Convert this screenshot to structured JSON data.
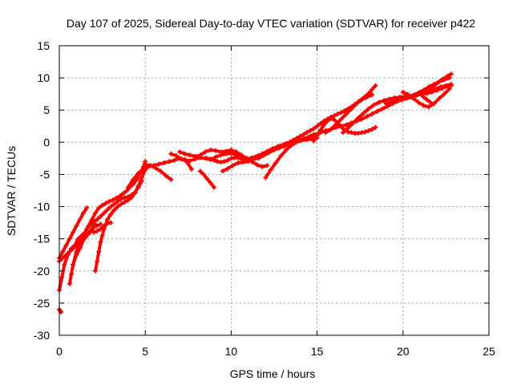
{
  "chart_data": {
    "type": "scatter",
    "title": "Day 107 of 2025, Sidereal Day-to-day VTEC variation (SDTVAR) for receiver p422",
    "xlabel": "GPS time / hours",
    "ylabel": "SDTVAR / TECUs",
    "xlim": [
      0,
      25
    ],
    "ylim": [
      -30,
      15
    ],
    "x_ticks": [
      0,
      5,
      10,
      15,
      20,
      25
    ],
    "y_ticks": [
      -30,
      -25,
      -20,
      -15,
      -10,
      -5,
      0,
      5,
      10,
      15
    ],
    "grid": true,
    "series_color": "#ff0000",
    "marker": "plus",
    "series": [
      {
        "x": [
          0.0,
          0.05,
          0.1
        ],
        "y": [
          -26.0,
          -26.2,
          -26.4
        ]
      },
      {
        "x": [
          0.0,
          0.2,
          0.4,
          0.6,
          0.8,
          1.0,
          1.2,
          1.4,
          1.6
        ],
        "y": [
          -18.0,
          -17.0,
          -16.0,
          -15.0,
          -14.0,
          -13.0,
          -12.0,
          -11.0,
          -10.2
        ]
      },
      {
        "x": [
          0.0,
          0.15,
          0.3,
          0.5,
          0.7,
          0.9,
          1.1,
          1.3,
          1.5,
          1.7,
          1.9,
          2.1,
          2.3,
          2.5,
          2.7,
          2.9,
          3.1,
          3.3,
          3.5,
          3.7,
          3.9,
          4.1,
          4.3,
          4.5,
          4.7,
          4.9,
          5.0
        ],
        "y": [
          -23.0,
          -21.0,
          -19.0,
          -17.5,
          -16.5,
          -16.0,
          -15.0,
          -14.5,
          -14.0,
          -13.0,
          -12.0,
          -11.0,
          -10.2,
          -9.8,
          -9.5,
          -9.2,
          -9.0,
          -8.7,
          -8.4,
          -8.0,
          -7.6,
          -7.0,
          -6.5,
          -5.8,
          -4.8,
          -3.8,
          -3.0
        ]
      },
      {
        "x": [
          0.0,
          0.2,
          0.4,
          0.6,
          0.8,
          1.0,
          1.2,
          1.4,
          1.6,
          1.8,
          2.0
        ],
        "y": [
          -18.5,
          -18.0,
          -17.5,
          -17.0,
          -16.5,
          -16.0,
          -15.5,
          -15.2,
          -14.5,
          -14.0,
          -13.3
        ]
      },
      {
        "x": [
          0.6,
          0.7,
          0.8,
          1.0,
          1.2,
          1.4,
          1.6,
          1.8,
          2.0,
          2.2,
          2.4,
          2.6,
          2.8,
          3.0,
          3.2,
          3.4,
          3.6,
          3.8,
          4.0,
          4.2,
          4.4,
          4.6,
          4.8
        ],
        "y": [
          -22.0,
          -20.5,
          -19.0,
          -17.0,
          -15.5,
          -14.5,
          -13.5,
          -12.8,
          -12.3,
          -12.0,
          -11.5,
          -11.0,
          -10.5,
          -10.0,
          -9.6,
          -9.2,
          -8.8,
          -8.6,
          -8.5,
          -8.2,
          -7.8,
          -7.0,
          -6.0
        ]
      },
      {
        "x": [
          0.8,
          1.0,
          1.2,
          1.4,
          1.6,
          1.8,
          2.0,
          2.1,
          2.2,
          2.4
        ],
        "y": [
          -19.0,
          -17.5,
          -16.5,
          -15.2,
          -14.5,
          -13.8,
          -13.0,
          -12.8,
          -13.0,
          -12.7
        ]
      },
      {
        "x": [
          2.1,
          2.2,
          2.3,
          2.4,
          2.5,
          2.6,
          2.7,
          2.8,
          3.0,
          3.2,
          3.4,
          3.6,
          3.8,
          4.0,
          4.2,
          4.4,
          4.6,
          4.8,
          5.0
        ],
        "y": [
          -20.0,
          -18.5,
          -17.0,
          -15.5,
          -14.5,
          -13.5,
          -12.8,
          -12.0,
          -11.2,
          -10.5,
          -10.0,
          -9.6,
          -9.3,
          -9.0,
          -8.6,
          -7.9,
          -6.8,
          -5.5,
          -4.3
        ]
      },
      {
        "x": [
          2.0,
          2.2,
          2.4,
          2.6,
          2.8,
          3.0
        ],
        "y": [
          -14.0,
          -13.8,
          -13.5,
          -13.0,
          -12.6,
          -12.5
        ]
      },
      {
        "x": [
          4.0,
          4.3,
          4.6,
          4.9,
          5.2,
          5.5,
          5.8,
          6.1,
          6.4,
          6.7,
          7.0,
          7.3,
          7.6,
          7.9,
          8.2,
          8.5,
          8.8,
          9.1,
          9.4,
          9.7,
          10.0,
          10.3,
          10.6,
          10.9,
          11.2,
          11.5,
          11.8,
          12.1,
          12.4,
          12.7,
          13.0,
          13.3,
          13.6,
          13.9,
          14.2,
          14.5,
          14.8
        ],
        "y": [
          -7.0,
          -5.8,
          -4.8,
          -4.2,
          -3.8,
          -3.6,
          -3.4,
          -3.2,
          -3.0,
          -2.8,
          -2.5,
          -2.7,
          -2.9,
          -2.6,
          -2.4,
          -2.5,
          -2.7,
          -2.3,
          -2.0,
          -1.8,
          -1.7,
          -2.0,
          -2.3,
          -2.6,
          -2.5,
          -2.2,
          -1.8,
          -1.4,
          -1.0,
          -0.7,
          -0.5,
          -0.3,
          -0.1,
          0.2,
          0.5,
          0.8,
          1.2
        ]
      },
      {
        "x": [
          5.0,
          5.3,
          5.6,
          5.9,
          6.2,
          6.5
        ],
        "y": [
          -3.5,
          -3.6,
          -4.0,
          -4.5,
          -5.2,
          -5.8
        ]
      },
      {
        "x": [
          6.5,
          6.8,
          7.1,
          7.4,
          7.7
        ],
        "y": [
          -1.8,
          -2.1,
          -2.6,
          -3.0,
          -4.2
        ]
      },
      {
        "x": [
          7.0,
          7.3,
          7.6,
          7.9,
          8.2,
          8.5,
          8.8,
          9.1,
          9.4,
          9.7,
          10.0,
          10.3,
          10.6,
          10.9,
          11.2,
          11.5,
          11.8,
          12.1
        ],
        "y": [
          -1.5,
          -1.8,
          -2.0,
          -2.2,
          -2.0,
          -1.5,
          -1.2,
          -1.3,
          -1.5,
          -1.4,
          -1.2,
          -1.5,
          -2.0,
          -2.5,
          -3.0,
          -3.5,
          -3.8,
          -3.6
        ]
      },
      {
        "x": [
          8.2,
          8.4,
          8.6,
          8.8,
          9.0
        ],
        "y": [
          -4.5,
          -5.0,
          -5.7,
          -6.3,
          -7.0
        ]
      },
      {
        "x": [
          8.6,
          8.8,
          9.0,
          9.2,
          9.4,
          9.6,
          9.8,
          10.0,
          10.2,
          10.4,
          10.6,
          10.8,
          11.0,
          11.2,
          11.4,
          11.6,
          11.8,
          12.0,
          12.2,
          12.4,
          12.6,
          12.8,
          13.0,
          13.2,
          13.4,
          13.6,
          13.8,
          14.0,
          14.2,
          14.4,
          14.6,
          14.8,
          15.0,
          15.2,
          15.4,
          15.6,
          15.8,
          16.0,
          16.2,
          16.4,
          16.6,
          16.8,
          17.0,
          17.2,
          17.4,
          17.6,
          17.8,
          18.0,
          18.2,
          18.4
        ],
        "y": [
          -2.5,
          -2.6,
          -2.8,
          -3.0,
          -3.1,
          -3.0,
          -2.8,
          -2.5,
          -2.4,
          -2.4,
          -2.6,
          -2.7,
          -2.6,
          -2.4,
          -2.3,
          -2.1,
          -2.0,
          -1.8,
          -1.5,
          -1.2,
          -0.9,
          -0.6,
          -0.4,
          -0.2,
          0.0,
          0.3,
          0.6,
          0.9,
          1.2,
          1.5,
          1.8,
          2.1,
          2.5,
          2.9,
          3.3,
          3.6,
          3.9,
          4.1,
          4.4,
          4.6,
          4.9,
          5.2,
          5.5,
          5.9,
          6.3,
          6.7,
          7.1,
          7.6,
          8.2,
          8.8
        ]
      },
      {
        "x": [
          9.5,
          9.8,
          10.1,
          10.4,
          10.7,
          11.0,
          11.3,
          11.6,
          11.9,
          12.2
        ],
        "y": [
          -4.5,
          -4.1,
          -3.6,
          -3.2,
          -3.1,
          -3.0,
          -2.7,
          -2.4,
          -2.0,
          -1.6
        ]
      },
      {
        "x": [
          11.6,
          11.9,
          12.2,
          12.5,
          12.8,
          13.1,
          13.4,
          13.7,
          14.0,
          14.3,
          14.6,
          14.9,
          15.2,
          15.5,
          15.8,
          16.1,
          16.4,
          16.7,
          17.0,
          17.3,
          17.6,
          17.9,
          18.2,
          18.5,
          18.8,
          19.1,
          19.4,
          19.7,
          20.0,
          20.3,
          20.6,
          20.9,
          21.2,
          21.5,
          21.8,
          22.1,
          22.4,
          22.7
        ],
        "y": [
          -2.5,
          -2.0,
          -1.6,
          -1.2,
          -0.9,
          -0.6,
          -0.3,
          0.0,
          0.3,
          0.6,
          0.9,
          1.2,
          1.5,
          1.8,
          2.0,
          2.3,
          2.5,
          2.7,
          3.0,
          3.3,
          3.6,
          4.0,
          4.4,
          4.8,
          5.2,
          5.6,
          6.0,
          6.4,
          6.7,
          7.0,
          7.3,
          7.7,
          8.1,
          8.6,
          9.0,
          9.4,
          9.7,
          10.0
        ]
      },
      {
        "x": [
          12.0,
          12.3,
          12.6,
          12.9,
          13.2,
          13.5,
          13.8,
          14.1,
          14.4,
          14.7,
          15.0
        ],
        "y": [
          -5.5,
          -4.3,
          -3.2,
          -2.1,
          -1.2,
          -0.5,
          0.0,
          0.3,
          0.4,
          0.5,
          0.7
        ]
      },
      {
        "x": [
          14.8,
          15.0,
          15.2,
          15.4,
          15.6,
          15.8,
          16.0,
          16.2,
          16.4,
          16.6,
          16.8,
          17.0,
          17.2,
          17.4,
          17.6,
          17.8,
          18.0,
          18.2,
          18.4
        ],
        "y": [
          0.2,
          1.0,
          1.9,
          2.7,
          3.3,
          3.7,
          3.5,
          3.0,
          2.4,
          1.9,
          1.6,
          1.5,
          1.4,
          1.4,
          1.5,
          1.6,
          1.8,
          2.0,
          2.3
        ]
      },
      {
        "x": [
          15.5,
          15.8,
          16.1,
          16.4,
          16.7,
          17.0,
          17.3,
          17.6,
          17.9,
          18.2
        ],
        "y": [
          1.5,
          2.0,
          2.8,
          3.6,
          4.4,
          5.2,
          6.0,
          6.6,
          7.0,
          7.4
        ]
      },
      {
        "x": [
          16.5,
          16.8,
          17.1,
          17.4,
          17.7,
          18.0,
          18.3,
          18.6,
          18.9,
          19.2,
          19.5,
          19.8,
          20.1,
          20.4,
          20.7,
          21.0,
          21.3,
          21.6,
          21.9,
          22.2,
          22.5,
          22.8
        ],
        "y": [
          1.5,
          2.2,
          3.0,
          3.8,
          4.5,
          5.2,
          5.8,
          6.2,
          6.5,
          6.7,
          6.9,
          7.0,
          7.1,
          7.2,
          7.4,
          7.6,
          7.8,
          8.0,
          8.3,
          8.6,
          8.8,
          9.0
        ]
      },
      {
        "x": [
          19.0,
          19.3,
          19.6,
          19.9,
          20.2,
          20.5,
          20.8,
          21.1,
          21.4,
          21.7,
          22.0,
          22.3,
          22.6,
          22.8
        ],
        "y": [
          6.0,
          6.2,
          6.5,
          6.6,
          6.8,
          7.0,
          7.3,
          7.5,
          7.6,
          7.8,
          8.1,
          8.4,
          8.7,
          8.8
        ]
      },
      {
        "x": [
          20.0,
          20.3,
          20.6,
          20.9,
          21.2,
          21.5,
          21.8,
          22.1,
          22.4,
          22.7
        ],
        "y": [
          7.8,
          7.4,
          6.8,
          6.2,
          5.7,
          5.5,
          6.0,
          6.8,
          7.5,
          8.3
        ]
      },
      {
        "x": [
          20.5,
          20.8,
          21.1,
          21.4,
          21.7,
          22.0,
          22.3,
          22.6,
          22.8
        ],
        "y": [
          7.0,
          7.4,
          7.8,
          8.2,
          8.6,
          9.2,
          9.8,
          10.3,
          10.6
        ]
      },
      {
        "x": [
          21.0,
          21.2,
          21.4,
          21.6
        ],
        "y": [
          7.5,
          7.0,
          6.6,
          6.2
        ]
      }
    ]
  }
}
